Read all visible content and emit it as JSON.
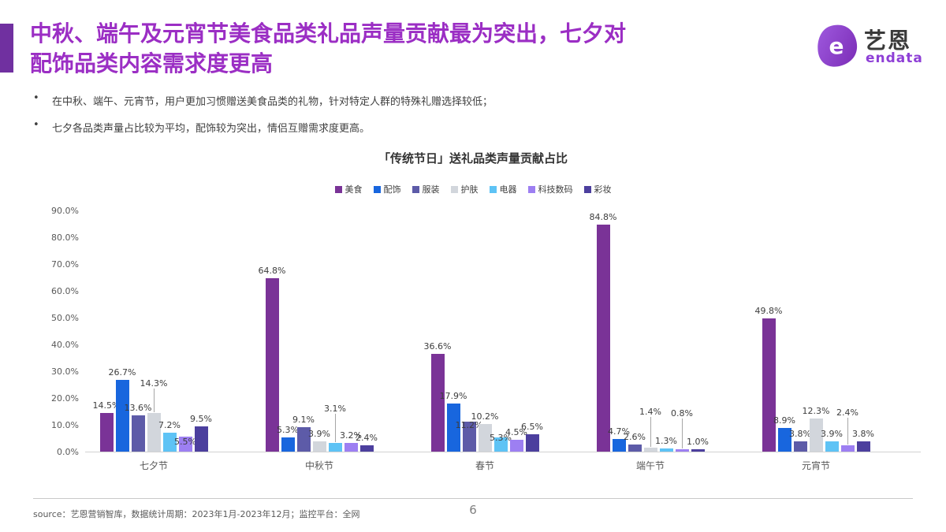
{
  "header": {
    "title_line1": "中秋、端午及元宵节美食品类礼品声量贡献最为突出，七夕对",
    "title_line2": "配饰品类内容需求度更高",
    "title_color": "#9B2EC4",
    "accent_color": "#7030A0"
  },
  "bullets": [
    "在中秋、端午、元宵节，用户更加习惯赠送美食品类的礼物，针对特定人群的特殊礼赠选择较低；",
    "七夕各品类声量占比较为平均，配饰较为突出，情侣互赠需求度更高。"
  ],
  "logo": {
    "brand": "艺恩",
    "sub": "endata",
    "color": "#8E3FD6"
  },
  "chart_data": {
    "type": "bar",
    "title": "「传统节日」送礼品类声量贡献占比",
    "categories": [
      "七夕节",
      "中秋节",
      "春节",
      "端午节",
      "元宵节"
    ],
    "series": [
      {
        "name": "美食",
        "color": "#7A3397",
        "values": [
          14.5,
          64.8,
          36.6,
          84.8,
          49.8
        ]
      },
      {
        "name": "配饰",
        "color": "#1866DE",
        "values": [
          26.7,
          5.3,
          17.9,
          4.7,
          8.9
        ]
      },
      {
        "name": "服装",
        "color": "#5D5BA8",
        "values": [
          13.6,
          9.1,
          11.2,
          2.6,
          3.8
        ]
      },
      {
        "name": "护肤",
        "color": "#D2D6DC",
        "values": [
          14.3,
          3.9,
          10.2,
          1.4,
          12.3
        ]
      },
      {
        "name": "电器",
        "color": "#5EC3F5",
        "values": [
          7.2,
          3.1,
          5.3,
          1.3,
          3.9
        ]
      },
      {
        "name": "科技数码",
        "color": "#9D7FF2",
        "values": [
          5.5,
          3.2,
          4.5,
          0.8,
          2.4
        ]
      },
      {
        "name": "彩妆",
        "color": "#4C3F9E",
        "values": [
          9.5,
          2.4,
          6.5,
          1.0,
          3.8
        ]
      }
    ],
    "ylim": [
      0,
      90
    ],
    "ytick_step": 10,
    "ytick_labels": [
      "0.0%",
      "10.0%",
      "20.0%",
      "30.0%",
      "40.0%",
      "50.0%",
      "60.0%",
      "70.0%",
      "80.0%",
      "90.0%"
    ],
    "value_label_format": "0.0%",
    "grid": false,
    "legend_position": "top",
    "label_overrides": [
      {
        "c": 0,
        "s": 3,
        "dy": -28,
        "leader": true
      },
      {
        "c": 0,
        "s": 5,
        "dy": 16,
        "leader": false
      },
      {
        "c": 1,
        "s": 4,
        "dy": -34,
        "leader": true
      },
      {
        "c": 2,
        "s": 2,
        "dy": 14,
        "leader": false
      },
      {
        "c": 2,
        "s": 4,
        "dy": 10,
        "leader": false
      },
      {
        "c": 3,
        "s": 3,
        "dy": -36,
        "leader": true
      },
      {
        "c": 3,
        "s": 5,
        "dy": -36,
        "leader": true
      },
      {
        "c": 4,
        "s": 5,
        "dy": -32,
        "leader": true
      }
    ]
  },
  "footer": {
    "source": "source：艺恩营销智库，数据统计周期：2023年1月-2023年12月；监控平台：全网",
    "page": "6"
  }
}
